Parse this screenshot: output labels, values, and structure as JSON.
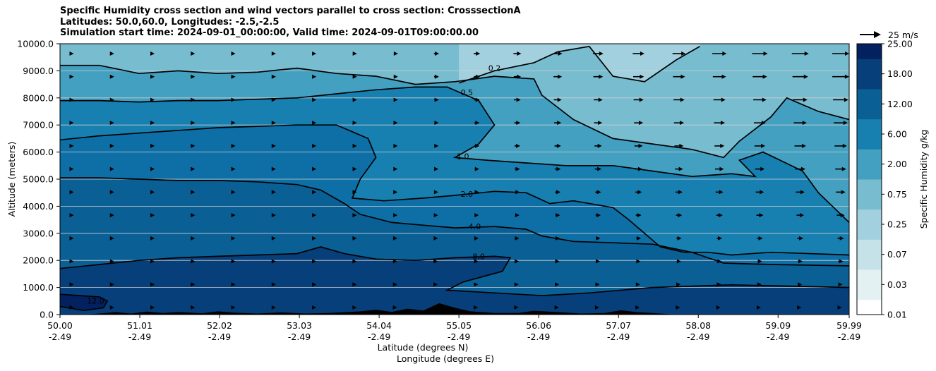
{
  "chart_data": {
    "type": "contour",
    "title_lines": [
      "Specific Humidity cross section and wind vectors parallel to cross section: CrosssectionA",
      "Latitudes: 50.0,60.0, Longitudes: -2.5,-2.5",
      "Simulation start time: 2024-09-01_00:00:00, Valid time: 2024-09-01T09:00:00.00"
    ],
    "xlabel_line1": "Latitude (degrees N)",
    "xlabel_line2": "Longitude (degrees E)",
    "ylabel": "Altitude (meters)",
    "colorbar_label": "Specific Humidity g/kg",
    "quiver_key": "25 m/s",
    "ylim": [
      0,
      10000
    ],
    "xlim": [
      50.0,
      59.99
    ],
    "x_ticks": [
      {
        "value": 50.0,
        "lat": "50.00",
        "lon": "-2.49"
      },
      {
        "value": 51.01,
        "lat": "51.01",
        "lon": "-2.49"
      },
      {
        "value": 52.02,
        "lat": "52.02",
        "lon": "-2.49"
      },
      {
        "value": 53.03,
        "lat": "53.03",
        "lon": "-2.49"
      },
      {
        "value": 54.04,
        "lat": "54.04",
        "lon": "-2.49"
      },
      {
        "value": 55.05,
        "lat": "55.05",
        "lon": "-2.49"
      },
      {
        "value": 56.06,
        "lat": "56.06",
        "lon": "-2.49"
      },
      {
        "value": 57.07,
        "lat": "57.07",
        "lon": "-2.49"
      },
      {
        "value": 58.08,
        "lat": "58.08",
        "lon": "-2.49"
      },
      {
        "value": 59.09,
        "lat": "59.09",
        "lon": "-2.49"
      },
      {
        "value": 59.99,
        "lat": "59.99",
        "lon": "-2.49"
      }
    ],
    "y_ticks": [
      {
        "value": 0,
        "label": "0.0"
      },
      {
        "value": 1000,
        "label": "1000.0"
      },
      {
        "value": 2000,
        "label": "2000.0"
      },
      {
        "value": 3000,
        "label": "3000.0"
      },
      {
        "value": 4000,
        "label": "4000.0"
      },
      {
        "value": 5000,
        "label": "5000.0"
      },
      {
        "value": 6000,
        "label": "6000.0"
      },
      {
        "value": 7000,
        "label": "7000.0"
      },
      {
        "value": 8000,
        "label": "8000.0"
      },
      {
        "value": 9000,
        "label": "9000.0"
      },
      {
        "value": 10000,
        "label": "10000.0"
      }
    ],
    "colorbar_levels": [
      {
        "label": "0.01",
        "color": "#ffffff"
      },
      {
        "label": "0.03",
        "color": "#e4f1f3"
      },
      {
        "label": "0.07",
        "color": "#c6e2e9"
      },
      {
        "label": "0.25",
        "color": "#a3d0de"
      },
      {
        "label": "0.75",
        "color": "#78bcd0"
      },
      {
        "label": "2.00",
        "color": "#44a0c0"
      },
      {
        "label": "6.00",
        "color": "#1780b0"
      },
      {
        "label": "12.00",
        "color": "#0a5f95"
      },
      {
        "label": "18.00",
        "color": "#073f7a"
      },
      {
        "label": "25.00",
        "color": "#03215e"
      }
    ],
    "contours": [
      {
        "level": "12.0",
        "label_x": 50.45,
        "label_alt": 450,
        "points": [
          [
            50.0,
            750
          ],
          [
            50.25,
            700
          ],
          [
            50.5,
            650
          ],
          [
            50.6,
            500
          ],
          [
            50.55,
            250
          ],
          [
            50.3,
            150
          ],
          [
            50.0,
            300
          ]
        ]
      },
      {
        "level": "8.0",
        "label_x": 55.3,
        "label_alt": 2100,
        "points": [
          [
            50.0,
            1700
          ],
          [
            50.5,
            1850
          ],
          [
            51.0,
            2000
          ],
          [
            51.5,
            2100
          ],
          [
            52.0,
            2150
          ],
          [
            52.5,
            2200
          ],
          [
            53.0,
            2250
          ],
          [
            53.3,
            2500
          ],
          [
            53.6,
            2250
          ],
          [
            54.0,
            2050
          ],
          [
            54.5,
            2000
          ],
          [
            55.0,
            2100
          ],
          [
            55.5,
            2150
          ],
          [
            55.7,
            2100
          ],
          [
            55.6,
            1600
          ],
          [
            55.1,
            1200
          ],
          [
            54.9,
            900
          ],
          [
            55.5,
            800
          ],
          [
            56.1,
            700
          ],
          [
            56.7,
            800
          ],
          [
            57.5,
            1000
          ],
          [
            58.5,
            1100
          ],
          [
            59.99,
            1000
          ]
        ]
      },
      {
        "level": "4.0",
        "label_x": 55.25,
        "label_alt": 3200,
        "points": [
          [
            50.0,
            5050
          ],
          [
            50.5,
            5050
          ],
          [
            51.0,
            5000
          ],
          [
            51.5,
            4950
          ],
          [
            52.0,
            4950
          ],
          [
            52.5,
            4900
          ],
          [
            53.0,
            4800
          ],
          [
            53.3,
            4600
          ],
          [
            53.6,
            4100
          ],
          [
            53.8,
            3700
          ],
          [
            54.2,
            3400
          ],
          [
            54.6,
            3300
          ],
          [
            55.0,
            3200
          ],
          [
            55.5,
            3250
          ],
          [
            55.9,
            3150
          ],
          [
            56.1,
            2900
          ],
          [
            56.5,
            2700
          ],
          [
            57.0,
            2650
          ],
          [
            57.5,
            2600
          ],
          [
            58.0,
            2300
          ],
          [
            58.4,
            1900
          ],
          [
            59.0,
            1850
          ],
          [
            59.99,
            1800
          ]
        ]
      },
      {
        "level": "2.0",
        "label_x": 55.15,
        "label_alt": 4400,
        "points": [
          [
            50.0,
            6450
          ],
          [
            50.5,
            6600
          ],
          [
            51.0,
            6700
          ],
          [
            51.5,
            6800
          ],
          [
            52.0,
            6900
          ],
          [
            52.5,
            6950
          ],
          [
            53.0,
            7000
          ],
          [
            53.5,
            7000
          ],
          [
            53.9,
            6500
          ],
          [
            54.0,
            5800
          ],
          [
            53.8,
            5000
          ],
          [
            53.7,
            4300
          ],
          [
            54.1,
            4200
          ],
          [
            54.6,
            4300
          ],
          [
            55.0,
            4400
          ],
          [
            55.5,
            4550
          ],
          [
            55.9,
            4500
          ],
          [
            56.2,
            4100
          ],
          [
            56.5,
            4200
          ],
          [
            57.0,
            3950
          ],
          [
            57.2,
            3500
          ],
          [
            57.4,
            3000
          ],
          [
            57.6,
            2500
          ],
          [
            57.9,
            2300
          ],
          [
            58.2,
            2300
          ],
          [
            58.5,
            2200
          ],
          [
            59.0,
            2300
          ],
          [
            59.5,
            2250
          ],
          [
            59.99,
            2200
          ]
        ]
      },
      {
        "level": "1.0",
        "label_x": 55.1,
        "label_alt": 5800,
        "points": [
          [
            50.0,
            7900
          ],
          [
            50.5,
            7900
          ],
          [
            51.0,
            7850
          ],
          [
            51.5,
            7900
          ],
          [
            52.0,
            7900
          ],
          [
            52.5,
            7950
          ],
          [
            53.0,
            8000
          ],
          [
            53.5,
            8150
          ],
          [
            54.0,
            8300
          ],
          [
            54.5,
            8400
          ],
          [
            54.9,
            8400
          ],
          [
            55.3,
            7900
          ],
          [
            55.5,
            7000
          ],
          [
            55.3,
            6300
          ],
          [
            55.0,
            5800
          ],
          [
            55.4,
            5700
          ],
          [
            55.9,
            5600
          ],
          [
            56.4,
            5500
          ],
          [
            57.0,
            5500
          ],
          [
            57.5,
            5300
          ],
          [
            58.0,
            5100
          ],
          [
            58.5,
            5200
          ],
          [
            58.8,
            5100
          ],
          [
            58.6,
            5700
          ],
          [
            58.9,
            6000
          ],
          [
            59.4,
            5300
          ],
          [
            59.6,
            4500
          ],
          [
            59.99,
            3400
          ]
        ]
      },
      {
        "level": "0.5",
        "label_x": 55.15,
        "label_alt": 8150,
        "points": [
          [
            50.0,
            9200
          ],
          [
            50.5,
            9200
          ],
          [
            51.0,
            8900
          ],
          [
            51.5,
            9000
          ],
          [
            52.0,
            8900
          ],
          [
            52.5,
            8950
          ],
          [
            53.0,
            9100
          ],
          [
            53.5,
            8900
          ],
          [
            54.0,
            8800
          ],
          [
            54.5,
            8500
          ],
          [
            55.0,
            8600
          ],
          [
            55.5,
            8800
          ],
          [
            56.0,
            8700
          ],
          [
            56.1,
            8100
          ],
          [
            56.5,
            7200
          ],
          [
            57.0,
            6500
          ],
          [
            57.5,
            6300
          ],
          [
            58.0,
            6100
          ],
          [
            58.4,
            5800
          ],
          [
            58.6,
            6400
          ],
          [
            59.0,
            7300
          ],
          [
            59.2,
            8000
          ],
          [
            59.6,
            7500
          ],
          [
            59.99,
            7200
          ]
        ]
      },
      {
        "level": "0.2",
        "label_x": 55.5,
        "label_alt": 9050,
        "points": [
          [
            55.05,
            8550
          ],
          [
            55.5,
            9000
          ],
          [
            56.0,
            9300
          ],
          [
            56.3,
            9700
          ],
          [
            56.7,
            9900
          ],
          [
            57.0,
            8800
          ],
          [
            57.4,
            8600
          ],
          [
            57.8,
            9400
          ],
          [
            58.1,
            9900
          ]
        ]
      }
    ]
  }
}
